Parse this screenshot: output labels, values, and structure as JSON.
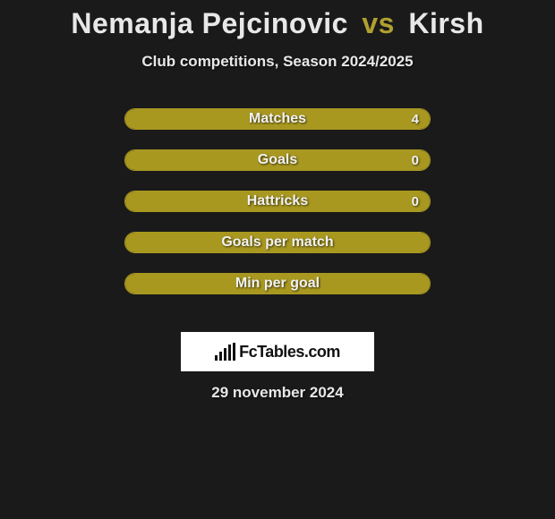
{
  "header": {
    "player1": "Nemanja Pejcinovic",
    "vs": "vs",
    "player2": "Kirsh",
    "subtitle": "Club competitions, Season 2024/2025"
  },
  "bar_color": "#a99820",
  "bar_border_color": "#a99820",
  "ellipse_color": "#e8e8e8",
  "background_color": "#1a1a1a",
  "stats": [
    {
      "label": "Matches",
      "value": "4",
      "fill_pct": 100,
      "show_left_ellipse": true,
      "show_right_ellipse": true
    },
    {
      "label": "Goals",
      "value": "0",
      "fill_pct": 100,
      "show_left_ellipse": true,
      "show_right_ellipse": true
    },
    {
      "label": "Hattricks",
      "value": "0",
      "fill_pct": 100,
      "show_left_ellipse": false,
      "show_right_ellipse": false
    },
    {
      "label": "Goals per match",
      "value": "",
      "fill_pct": 100,
      "show_left_ellipse": false,
      "show_right_ellipse": false
    },
    {
      "label": "Min per goal",
      "value": "",
      "fill_pct": 100,
      "show_left_ellipse": false,
      "show_right_ellipse": false
    }
  ],
  "logo": {
    "text": "FcTables.com"
  },
  "date": "29 november 2024"
}
